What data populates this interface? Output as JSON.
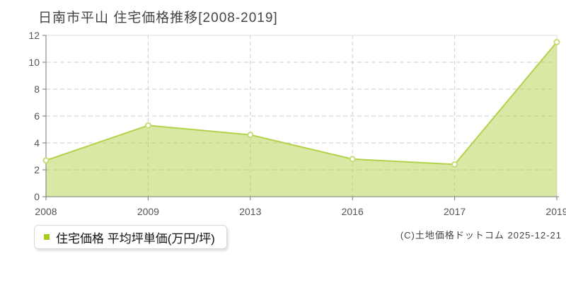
{
  "chart_data": {
    "type": "area",
    "title": "日南市平山 住宅価格推移[2008-2019]",
    "series_name": "住宅価格",
    "ylabel": "平均坪単価(万円/坪)",
    "xlabel": "",
    "categories": [
      "2008",
      "2009",
      "2013",
      "2016",
      "2017",
      "2019"
    ],
    "values": [
      2.7,
      5.3,
      4.6,
      2.8,
      2.4,
      11.5
    ],
    "ylim": [
      0,
      12
    ],
    "yticks": [
      0,
      2,
      4,
      6,
      8,
      10,
      12
    ],
    "grid": true,
    "legend_position": "bottom-left"
  },
  "legend": {
    "label": "住宅価格 平均坪単価(万円/坪)",
    "marker_color": "#a3cc1e"
  },
  "footer": {
    "copyright": "(C)土地価格ドットコム 2025-12-21"
  },
  "colors": {
    "line": "#b3d249",
    "marker_stroke": "#c6dc78",
    "marker_fill": "#ffffff",
    "grid": "#cccccc",
    "border": "#dddddd",
    "axis": "#777777",
    "tick_label": "#555555",
    "title_text": "#444444"
  }
}
